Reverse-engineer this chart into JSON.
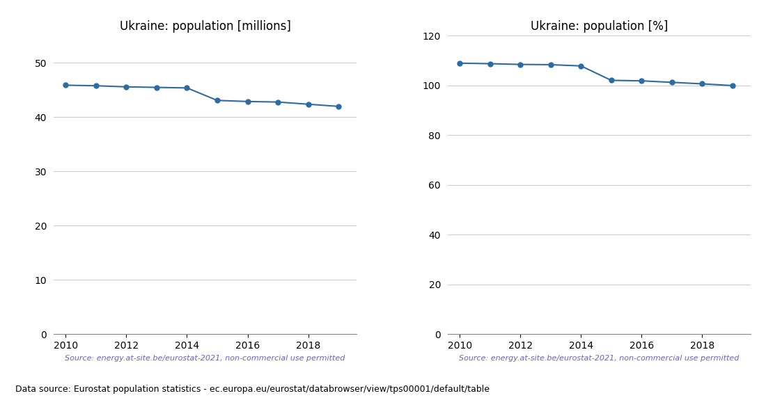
{
  "years": [
    2010,
    2011,
    2012,
    2013,
    2014,
    2015,
    2016,
    2017,
    2018,
    2019
  ],
  "population_millions": [
    45.9,
    45.8,
    45.6,
    45.5,
    45.4,
    43.1,
    42.9,
    42.8,
    42.4,
    42.0
  ],
  "population_percent": [
    109.0,
    108.8,
    108.5,
    108.4,
    107.9,
    102.1,
    101.9,
    101.3,
    100.7,
    100.0
  ],
  "title_millions": "Ukraine: population [millions]",
  "title_percent": "Ukraine: population [%]",
  "source_text": "Source: energy.at-site.be/eurostat-2021, non-commercial use permitted",
  "footer_text": "Data source: Eurostat population statistics - ec.europa.eu/eurostat/databrowser/view/tps00001/default/table",
  "line_color": "#2b6ca3",
  "source_color": "#6666bb",
  "ylim_millions": [
    0,
    55
  ],
  "ylim_percent": [
    0,
    120
  ],
  "yticks_millions": [
    0,
    10,
    20,
    30,
    40,
    50
  ],
  "yticks_percent": [
    0,
    20,
    40,
    60,
    80,
    100,
    120
  ],
  "xticks": [
    2010,
    2012,
    2014,
    2016,
    2018
  ],
  "background_color": "#ffffff",
  "axes_bg_color": "#ffffff",
  "grid_color": "#cccccc"
}
